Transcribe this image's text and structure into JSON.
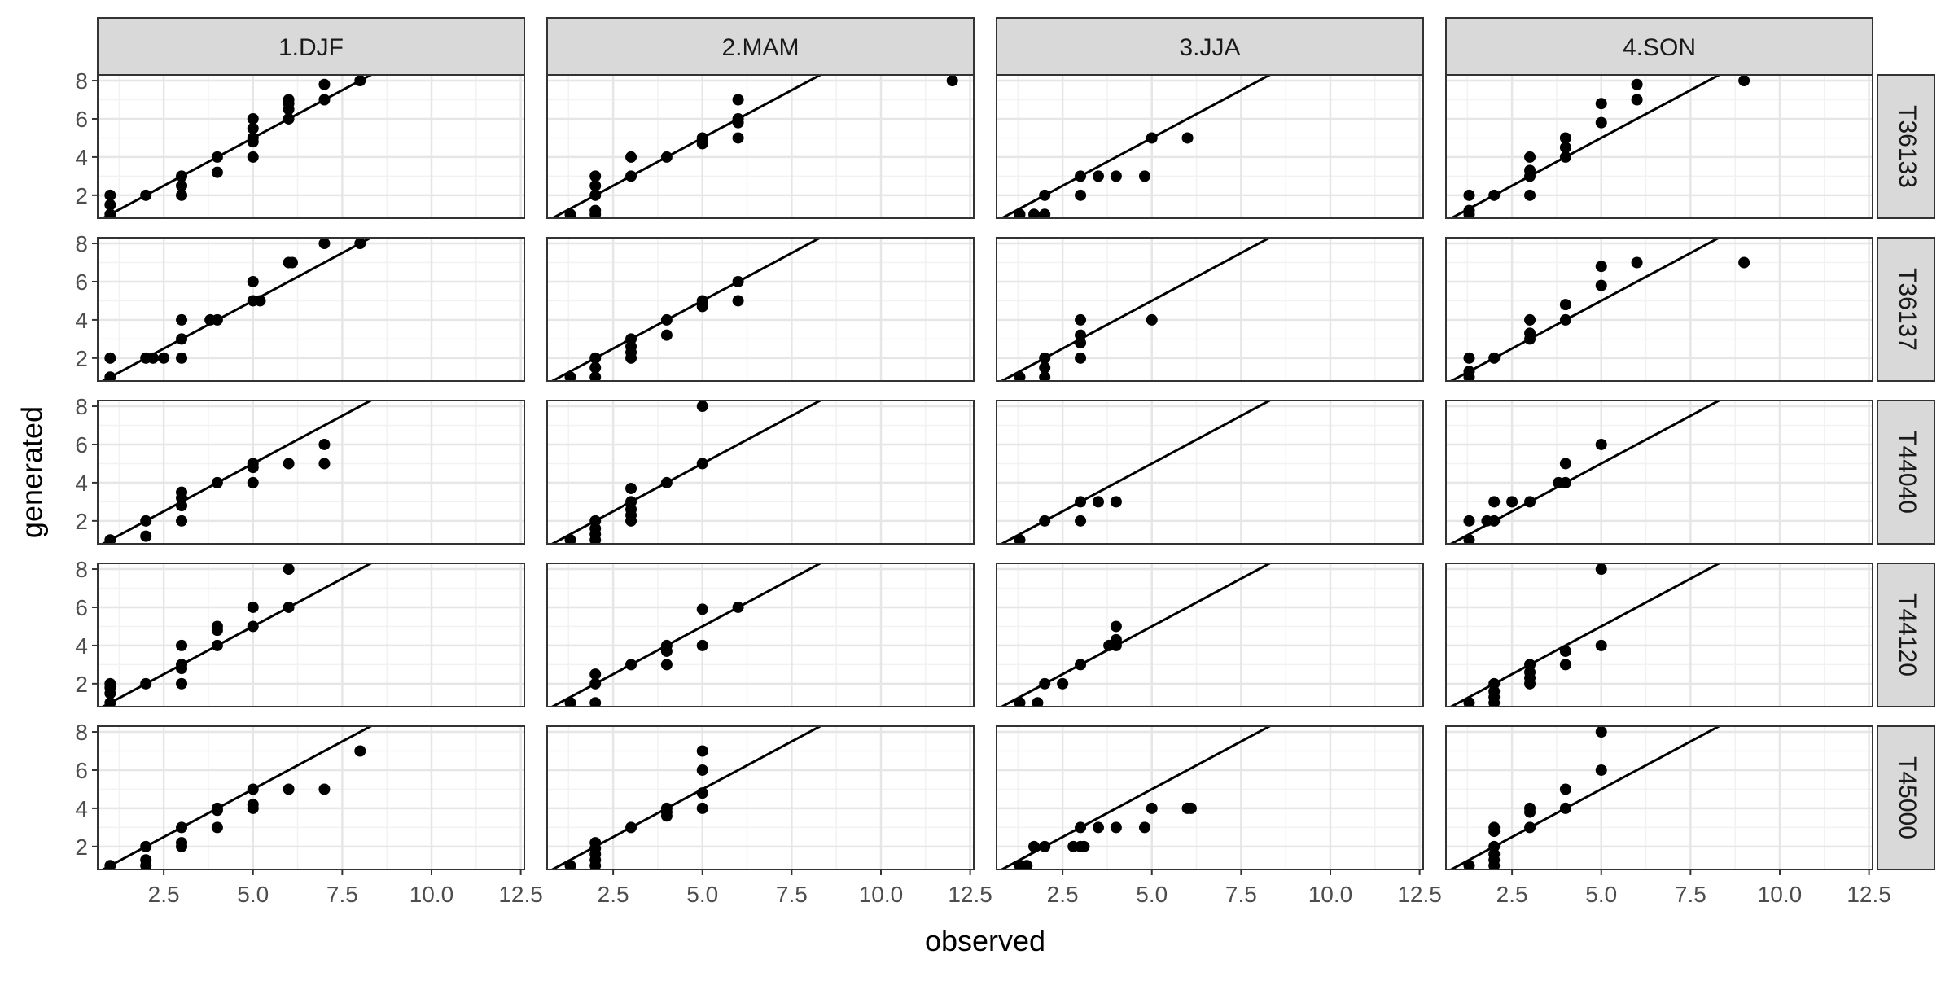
{
  "chart_data": {
    "type": "scatter",
    "layout": "facet-grid",
    "xlabel": "observed",
    "ylabel": "generated",
    "xlim": [
      0.65,
      12.6
    ],
    "ylim": [
      0.8,
      8.3
    ],
    "x_ticks": [
      2.5,
      5.0,
      7.5,
      10.0,
      12.5
    ],
    "x_tick_labels": [
      "2.5",
      "5.0",
      "7.5",
      "10.0",
      "12.5"
    ],
    "y_ticks": [
      2,
      4,
      6,
      8
    ],
    "y_tick_labels": [
      "2",
      "4",
      "6",
      "8"
    ],
    "reference_line": "y = x",
    "grid": true,
    "columns": [
      "1.DJF",
      "2.MAM",
      "3.JJA",
      "4.SON"
    ],
    "rows": [
      "T36133",
      "T36137",
      "T44040",
      "T44120",
      "T45000"
    ],
    "point_color": "#000000",
    "strip_fill": "#d9d9d9",
    "panels": [
      [
        {
          "points": [
            [
              1,
              1
            ],
            [
              1,
              1.5
            ],
            [
              1,
              2
            ],
            [
              2,
              2
            ],
            [
              3,
              2
            ],
            [
              3,
              2.5
            ],
            [
              3,
              3
            ],
            [
              4,
              3.2
            ],
            [
              4,
              4
            ],
            [
              5,
              4
            ],
            [
              5,
              4.8
            ],
            [
              5,
              5
            ],
            [
              5,
              5.5
            ],
            [
              5,
              6
            ],
            [
              6,
              6
            ],
            [
              6,
              6.5
            ],
            [
              6,
              6.8
            ],
            [
              6,
              7
            ],
            [
              7,
              7
            ],
            [
              7,
              7.8
            ],
            [
              8,
              8
            ]
          ]
        },
        {
          "points": [
            [
              1.3,
              1
            ],
            [
              2,
              1
            ],
            [
              2,
              1.2
            ],
            [
              2,
              2
            ],
            [
              2,
              2.5
            ],
            [
              2,
              3
            ],
            [
              3,
              3
            ],
            [
              3,
              4
            ],
            [
              4,
              4
            ],
            [
              5,
              4.7
            ],
            [
              5,
              5
            ],
            [
              6,
              5
            ],
            [
              6,
              5.8
            ],
            [
              6,
              6
            ],
            [
              6,
              7
            ],
            [
              12,
              8
            ]
          ]
        },
        {
          "points": [
            [
              1.3,
              1
            ],
            [
              1.7,
              1
            ],
            [
              2,
              1
            ],
            [
              2,
              2
            ],
            [
              3,
              2
            ],
            [
              3,
              3
            ],
            [
              3.5,
              3
            ],
            [
              4,
              3
            ],
            [
              4.8,
              3
            ],
            [
              5,
              5
            ],
            [
              6,
              5
            ]
          ]
        },
        {
          "points": [
            [
              1.3,
              1
            ],
            [
              1.3,
              1.2
            ],
            [
              1.3,
              2
            ],
            [
              2,
              2
            ],
            [
              3,
              2
            ],
            [
              3,
              3
            ],
            [
              3,
              3.3
            ],
            [
              3,
              4
            ],
            [
              4,
              4
            ],
            [
              4,
              4.5
            ],
            [
              4,
              5
            ],
            [
              5,
              5.8
            ],
            [
              5,
              6.8
            ],
            [
              6,
              7
            ],
            [
              6,
              7.8
            ],
            [
              9,
              8
            ]
          ]
        }
      ],
      [
        {
          "points": [
            [
              1,
              1
            ],
            [
              1,
              2
            ],
            [
              2,
              2
            ],
            [
              2.2,
              2
            ],
            [
              2.5,
              2
            ],
            [
              3,
              2
            ],
            [
              3,
              3
            ],
            [
              3,
              4
            ],
            [
              3.8,
              4
            ],
            [
              4,
              4
            ],
            [
              5,
              5
            ],
            [
              5.2,
              5
            ],
            [
              5,
              6
            ],
            [
              6,
              7
            ],
            [
              6.1,
              7
            ],
            [
              7,
              8
            ],
            [
              8,
              8
            ]
          ]
        },
        {
          "points": [
            [
              1.3,
              1
            ],
            [
              2,
              1
            ],
            [
              2,
              1.5
            ],
            [
              2,
              2
            ],
            [
              3,
              2
            ],
            [
              3,
              2.3
            ],
            [
              3,
              2.6
            ],
            [
              3,
              3
            ],
            [
              4,
              3.2
            ],
            [
              4,
              4
            ],
            [
              5,
              4.7
            ],
            [
              5,
              5
            ],
            [
              6,
              5
            ],
            [
              6,
              6
            ]
          ]
        },
        {
          "points": [
            [
              1.3,
              1
            ],
            [
              2,
              1
            ],
            [
              2,
              1.5
            ],
            [
              2,
              2
            ],
            [
              3,
              2
            ],
            [
              3,
              2.8
            ],
            [
              3,
              3.2
            ],
            [
              3,
              4
            ],
            [
              5,
              4
            ]
          ]
        },
        {
          "points": [
            [
              1.3,
              1
            ],
            [
              1.3,
              1.3
            ],
            [
              1.3,
              2
            ],
            [
              2,
              2
            ],
            [
              3,
              3
            ],
            [
              3,
              3.3
            ],
            [
              3,
              4
            ],
            [
              4,
              4
            ],
            [
              4,
              4.8
            ],
            [
              5,
              5.8
            ],
            [
              5,
              6.8
            ],
            [
              6,
              7
            ],
            [
              9,
              7
            ]
          ]
        }
      ],
      [
        {
          "points": [
            [
              1,
              1
            ],
            [
              2,
              1.2
            ],
            [
              2,
              2
            ],
            [
              3,
              2
            ],
            [
              3,
              2.8
            ],
            [
              3,
              3.2
            ],
            [
              3,
              3.5
            ],
            [
              4,
              4
            ],
            [
              5,
              4
            ],
            [
              5,
              4.8
            ],
            [
              5,
              5
            ],
            [
              6,
              5
            ],
            [
              7,
              5
            ],
            [
              7,
              6
            ]
          ]
        },
        {
          "points": [
            [
              1.3,
              1
            ],
            [
              2,
              1
            ],
            [
              2,
              1.3
            ],
            [
              2,
              1.6
            ],
            [
              2,
              2
            ],
            [
              3,
              2
            ],
            [
              3,
              2.3
            ],
            [
              3,
              2.6
            ],
            [
              3,
              3
            ],
            [
              3,
              3.7
            ],
            [
              4,
              4
            ],
            [
              5,
              5
            ],
            [
              5,
              8
            ]
          ]
        },
        {
          "points": [
            [
              1.3,
              1
            ],
            [
              2,
              2
            ],
            [
              3,
              2
            ],
            [
              3,
              3
            ],
            [
              3.5,
              3
            ],
            [
              4,
              3
            ]
          ]
        },
        {
          "points": [
            [
              1.3,
              1
            ],
            [
              1.3,
              2
            ],
            [
              1.8,
              2
            ],
            [
              2,
              2
            ],
            [
              2,
              3
            ],
            [
              2.5,
              3
            ],
            [
              3,
              3
            ],
            [
              3.8,
              4
            ],
            [
              4,
              4
            ],
            [
              4,
              5
            ],
            [
              5,
              6
            ]
          ]
        }
      ],
      [
        {
          "points": [
            [
              1,
              1
            ],
            [
              1,
              1.5
            ],
            [
              1,
              1.8
            ],
            [
              1,
              2
            ],
            [
              2,
              2
            ],
            [
              3,
              2
            ],
            [
              3,
              2.8
            ],
            [
              3,
              3
            ],
            [
              3,
              4
            ],
            [
              4,
              4
            ],
            [
              4,
              4.8
            ],
            [
              4,
              5
            ],
            [
              5,
              5
            ],
            [
              5,
              6
            ],
            [
              6,
              6
            ],
            [
              6,
              8
            ]
          ]
        },
        {
          "points": [
            [
              1.3,
              1
            ],
            [
              2,
              1
            ],
            [
              2,
              2
            ],
            [
              2,
              2.5
            ],
            [
              3,
              3
            ],
            [
              4,
              3
            ],
            [
              4,
              3.7
            ],
            [
              4,
              4
            ],
            [
              5,
              4
            ],
            [
              5,
              5.9
            ],
            [
              6,
              6
            ]
          ]
        },
        {
          "points": [
            [
              1.3,
              1
            ],
            [
              1.8,
              1
            ],
            [
              2,
              2
            ],
            [
              2.5,
              2
            ],
            [
              3,
              3
            ],
            [
              3.8,
              4
            ],
            [
              4,
              4
            ],
            [
              4,
              4.3
            ],
            [
              4,
              5
            ]
          ]
        },
        {
          "points": [
            [
              1.3,
              1
            ],
            [
              2,
              1
            ],
            [
              2,
              1.3
            ],
            [
              2,
              1.6
            ],
            [
              2,
              2
            ],
            [
              3,
              2
            ],
            [
              3,
              2.3
            ],
            [
              3,
              2.6
            ],
            [
              3,
              3
            ],
            [
              4,
              3
            ],
            [
              4,
              3.7
            ],
            [
              5,
              4
            ],
            [
              5,
              8
            ]
          ]
        }
      ],
      [
        {
          "points": [
            [
              1,
              1
            ],
            [
              2,
              1
            ],
            [
              2,
              1.3
            ],
            [
              2,
              2
            ],
            [
              3,
              2
            ],
            [
              3,
              2.2
            ],
            [
              3,
              3
            ],
            [
              4,
              3
            ],
            [
              4,
              3.9
            ],
            [
              4,
              4
            ],
            [
              5,
              4
            ],
            [
              5,
              4.2
            ],
            [
              5,
              5
            ],
            [
              6,
              5
            ],
            [
              7,
              5
            ],
            [
              8,
              7
            ]
          ]
        },
        {
          "points": [
            [
              1.3,
              1
            ],
            [
              2,
              1
            ],
            [
              2,
              1.3
            ],
            [
              2,
              1.6
            ],
            [
              2,
              1.9
            ],
            [
              2,
              2.2
            ],
            [
              3,
              3
            ],
            [
              4,
              3.6
            ],
            [
              4,
              3.8
            ],
            [
              4,
              4
            ],
            [
              5,
              4
            ],
            [
              5,
              4.8
            ],
            [
              5,
              6
            ],
            [
              5,
              7
            ]
          ]
        },
        {
          "points": [
            [
              1.3,
              1
            ],
            [
              1.5,
              1
            ],
            [
              1.7,
              2
            ],
            [
              2,
              2
            ],
            [
              2.8,
              2
            ],
            [
              3,
              2
            ],
            [
              3.1,
              2
            ],
            [
              3,
              3
            ],
            [
              3.5,
              3
            ],
            [
              4,
              3
            ],
            [
              4.8,
              3
            ],
            [
              5,
              4
            ],
            [
              6,
              4
            ],
            [
              6.1,
              4
            ]
          ]
        },
        {
          "points": [
            [
              1.3,
              1
            ],
            [
              2,
              1
            ],
            [
              2,
              1.3
            ],
            [
              2,
              1.6
            ],
            [
              2,
              2
            ],
            [
              2,
              2.8
            ],
            [
              2,
              3
            ],
            [
              3,
              3
            ],
            [
              3,
              3.8
            ],
            [
              3,
              4
            ],
            [
              4,
              4
            ],
            [
              4,
              5
            ],
            [
              5,
              6
            ],
            [
              5,
              8
            ]
          ]
        }
      ]
    ]
  }
}
